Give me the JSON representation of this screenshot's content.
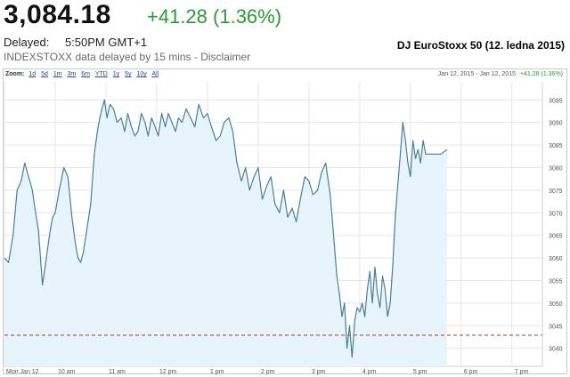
{
  "header": {
    "price": "3,084.18",
    "change": "+41.28 (1.36%)",
    "delayed_label": "Delayed:",
    "delayed_time": "5:50PM GMT+1",
    "source_note": "INDEXSTOXX data delayed by 15 mins - Disclaimer",
    "chart_title": "DJ EuroStoxx 50 (12. ledna 2015)"
  },
  "toolbar": {
    "zoom_label": "Zoom:",
    "zoom_options": [
      "1d",
      "5d",
      "1m",
      "3m",
      "6m",
      "YTD",
      "1y",
      "5y",
      "10y",
      "All"
    ],
    "date_range": "Jan 12, 2015 - Jan 12, 2015",
    "range_change": "+41.28 (1.36%)"
  },
  "colors": {
    "line": "#4a7f96",
    "fill": "#e7f4fb",
    "positive": "#2a9b32",
    "prev_close_line": "#a33a3a",
    "grid": "#e6e6e6"
  },
  "chart_data": {
    "type": "area",
    "title": "DJ EuroStoxx 50 (12. ledna 2015)",
    "x_tick_labels": [
      "Mon Jan 12",
      "10 am",
      "11 am",
      "12 pm",
      "1 pm",
      "2 pm",
      "3 pm",
      "4 pm",
      "5 pm",
      "6 pm",
      "7 pm"
    ],
    "x_ticks_hours": [
      9,
      10,
      11,
      12,
      13,
      14,
      15,
      16,
      17,
      18,
      19
    ],
    "xlim_hours": [
      9,
      19.6
    ],
    "ylim": [
      3036,
      3099
    ],
    "y_ticks": [
      3040,
      3045,
      3050,
      3055,
      3060,
      3065,
      3070,
      3075,
      3080,
      3085,
      3090,
      3095
    ],
    "y_axis_side": "right",
    "grid": true,
    "previous_close": 3042.9,
    "series": [
      {
        "x": [
          9.0,
          9.08,
          9.17,
          9.25,
          9.33,
          9.4,
          9.45,
          9.5,
          9.55,
          9.6,
          9.67,
          9.75,
          9.8,
          9.85,
          9.9,
          9.95,
          10.0,
          10.08,
          10.17,
          10.25,
          10.33,
          10.4,
          10.45,
          10.5,
          10.55,
          10.62,
          10.7,
          10.77,
          10.83,
          10.88,
          10.92,
          10.97,
          11.02,
          11.08,
          11.15,
          11.22,
          11.3,
          11.37,
          11.43,
          11.5,
          11.57,
          11.63,
          11.7,
          11.77,
          11.83,
          11.9,
          11.97,
          12.03,
          12.1,
          12.17,
          12.23,
          12.3,
          12.37,
          12.43,
          12.5,
          12.58,
          12.67,
          12.75,
          12.83,
          12.92,
          13.0,
          13.08,
          13.17,
          13.25,
          13.33,
          13.42,
          13.5,
          13.58,
          13.67,
          13.75,
          13.83,
          13.92,
          14.0,
          14.08,
          14.17,
          14.25,
          14.33,
          14.42,
          14.5,
          14.58,
          14.67,
          14.75,
          14.83,
          14.92,
          15.0,
          15.08,
          15.17,
          15.25,
          15.33,
          15.42,
          15.5,
          15.55,
          15.6,
          15.65,
          15.7,
          15.75,
          15.8,
          15.85,
          15.9,
          15.95,
          16.0,
          16.05,
          16.1,
          16.15,
          16.2,
          16.25,
          16.3,
          16.35,
          16.4,
          16.45,
          16.5,
          16.55,
          16.6,
          16.65,
          16.7,
          16.75,
          16.8,
          16.85,
          16.9,
          16.95,
          17.0,
          17.05,
          17.1,
          17.15,
          17.2,
          17.25,
          17.3,
          17.4,
          17.5,
          17.6,
          17.72
        ],
        "y": [
          3060,
          3059,
          3065,
          3075,
          3077,
          3081,
          3079,
          3077,
          3075,
          3071,
          3066,
          3054,
          3058,
          3062,
          3066,
          3069,
          3070,
          3075,
          3080,
          3078,
          3069,
          3063,
          3060,
          3059,
          3061,
          3066,
          3072,
          3083,
          3088,
          3091,
          3093,
          3095,
          3091,
          3094,
          3093,
          3090,
          3091,
          3088,
          3092,
          3089,
          3087,
          3088,
          3092,
          3090,
          3087,
          3091,
          3089,
          3087,
          3092,
          3089,
          3092,
          3090,
          3088,
          3091,
          3090,
          3093,
          3091,
          3089,
          3094,
          3091,
          3092,
          3089,
          3086,
          3087,
          3090,
          3091,
          3088,
          3081,
          3077,
          3080,
          3075,
          3078,
          3080,
          3073,
          3076,
          3078,
          3072,
          3070,
          3075,
          3069,
          3071,
          3068,
          3073,
          3078,
          3077,
          3074,
          3075,
          3079,
          3081,
          3074,
          3063,
          3056,
          3052,
          3047,
          3050,
          3040,
          3045,
          3038,
          3046,
          3049,
          3048,
          3050,
          3047,
          3053,
          3057,
          3050,
          3058,
          3052,
          3049,
          3056,
          3053,
          3047,
          3050,
          3058,
          3069,
          3076,
          3083,
          3090,
          3086,
          3081,
          3078,
          3086,
          3082,
          3084,
          3081,
          3086,
          3083,
          3083,
          3083,
          3083,
          3084
        ]
      }
    ]
  }
}
